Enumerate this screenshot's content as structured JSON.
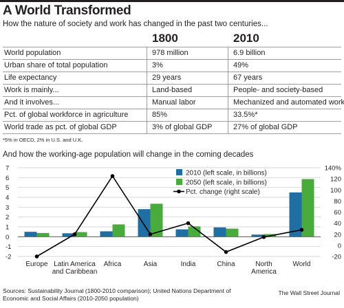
{
  "header": {
    "title": "A World Transformed",
    "subtitle": "How the nature of society and work has changed in the past two centuries..."
  },
  "table": {
    "col1": "1800",
    "col2": "2010",
    "rows": [
      {
        "label": "World population",
        "v1": "978 million",
        "v2": "6.9 billion"
      },
      {
        "label": "Urban share of total population",
        "v1": "3%",
        "v2": "49%"
      },
      {
        "label": "Life expectancy",
        "v1": "29 years",
        "v2": "67 years"
      },
      {
        "label": "Work is mainly...",
        "v1": "Land-based",
        "v2": "People- and society-based"
      },
      {
        "label": "And it involves...",
        "v1": "Manual labor",
        "v2": "Mechanized and automated work"
      },
      {
        "label": "Pct. of global workforce in agriculture",
        "v1": "85%",
        "v2": "33.5%*"
      },
      {
        "label": "World trade as pct. of global GDP",
        "v1": "3% of global GDP",
        "v2": "27% of global GDP"
      }
    ],
    "footnote": "*5% in OECD, 2% in U.S. and U.K."
  },
  "chart_data": {
    "type": "bar",
    "title": "And how the working-age population will change in the coming decades",
    "categories": [
      "Europe",
      "Latin America and Caribbean",
      "Africa",
      "Asia",
      "India",
      "China",
      "North America",
      "World"
    ],
    "category_lines": [
      [
        "Europe"
      ],
      [
        "Latin America",
        "and Caribbean"
      ],
      [
        "Africa"
      ],
      [
        "Asia"
      ],
      [
        "India"
      ],
      [
        "China"
      ],
      [
        "North",
        "America"
      ],
      [
        "World"
      ]
    ],
    "series": [
      {
        "name": "2010 (left scale, in billions)",
        "values": [
          0.5,
          0.35,
          0.55,
          2.8,
          0.75,
          0.95,
          0.22,
          4.5
        ],
        "color": "#1f6fa5"
      },
      {
        "name": "2050 (left scale, in billions)",
        "values": [
          0.38,
          0.47,
          1.25,
          3.35,
          1.05,
          0.82,
          0.27,
          5.85
        ],
        "color": "#4aab3d"
      }
    ],
    "line": {
      "name": "Pct. change (right scale)",
      "values": [
        -20,
        20,
        125,
        20,
        40,
        -12,
        15,
        28
      ]
    },
    "ylim": [
      -2,
      7
    ],
    "yticks": [
      "7",
      "6",
      "5",
      "4",
      "3",
      "2",
      "1",
      "0",
      "-1",
      "-2"
    ],
    "y2lim": [
      -20,
      140
    ],
    "y2ticks": [
      "140%",
      "120",
      "100",
      "80",
      "60",
      "40",
      "20",
      "0",
      "-20"
    ],
    "legend": "top-right"
  },
  "footer": {
    "sources": "Sources: Sustainability Journal (1800-2010 comparison); United Nations Department of Economic and Social Affairs (2010-2050 population)",
    "credit": "The Wall Street Journal"
  }
}
